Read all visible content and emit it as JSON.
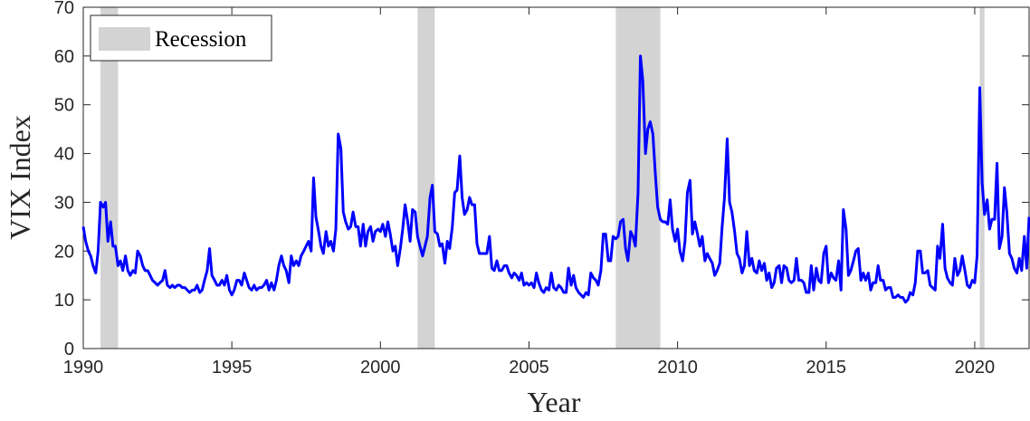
{
  "chart_data": {
    "type": "line",
    "x_label": "Year",
    "y_label": "VIX Index",
    "xlim": [
      1990,
      2021.83
    ],
    "ylim": [
      0,
      70
    ],
    "xticks": [
      1990,
      1995,
      2000,
      2005,
      2010,
      2015,
      2020
    ],
    "yticks": [
      0,
      10,
      20,
      30,
      40,
      50,
      60,
      70
    ],
    "legend": "upper left",
    "recession_name": "Recession",
    "recession_color": "#d3d3d3",
    "recessions": [
      [
        1990.58,
        1991.17
      ],
      [
        2001.25,
        2001.83
      ],
      [
        2007.92,
        2009.42
      ],
      [
        2020.17,
        2020.33
      ]
    ],
    "x": [
      1990.0,
      1990.08,
      1990.17,
      1990.25,
      1990.33,
      1990.42,
      1990.5,
      1990.58,
      1990.67,
      1990.75,
      1990.83,
      1990.92,
      1991.0,
      1991.08,
      1991.17,
      1991.25,
      1991.33,
      1991.42,
      1991.5,
      1991.58,
      1991.67,
      1991.75,
      1991.83,
      1991.92,
      1992.0,
      1992.08,
      1992.17,
      1992.25,
      1992.33,
      1992.42,
      1992.5,
      1992.58,
      1992.67,
      1992.75,
      1992.83,
      1992.92,
      1993.0,
      1993.08,
      1993.17,
      1993.25,
      1993.33,
      1993.42,
      1993.5,
      1993.58,
      1993.67,
      1993.75,
      1993.83,
      1993.92,
      1994.0,
      1994.08,
      1994.17,
      1994.25,
      1994.33,
      1994.42,
      1994.5,
      1994.58,
      1994.67,
      1994.75,
      1994.83,
      1994.92,
      1995.0,
      1995.08,
      1995.17,
      1995.25,
      1995.33,
      1995.42,
      1995.5,
      1995.58,
      1995.67,
      1995.75,
      1995.83,
      1995.92,
      1996.0,
      1996.08,
      1996.17,
      1996.25,
      1996.33,
      1996.42,
      1996.5,
      1996.58,
      1996.67,
      1996.75,
      1996.83,
      1996.92,
      1997.0,
      1997.08,
      1997.17,
      1997.25,
      1997.33,
      1997.42,
      1997.5,
      1997.58,
      1997.67,
      1997.75,
      1997.83,
      1997.92,
      1998.0,
      1998.08,
      1998.17,
      1998.25,
      1998.33,
      1998.42,
      1998.5,
      1998.58,
      1998.67,
      1998.75,
      1998.83,
      1998.92,
      1999.0,
      1999.08,
      1999.17,
      1999.25,
      1999.33,
      1999.42,
      1999.5,
      1999.58,
      1999.67,
      1999.75,
      1999.83,
      1999.92,
      2000.0,
      2000.08,
      2000.17,
      2000.25,
      2000.33,
      2000.42,
      2000.5,
      2000.58,
      2000.67,
      2000.75,
      2000.83,
      2000.92,
      2001.0,
      2001.08,
      2001.17,
      2001.25,
      2001.33,
      2001.42,
      2001.5,
      2001.58,
      2001.67,
      2001.75,
      2001.83,
      2001.92,
      2002.0,
      2002.08,
      2002.17,
      2002.25,
      2002.33,
      2002.42,
      2002.5,
      2002.58,
      2002.67,
      2002.75,
      2002.83,
      2002.92,
      2003.0,
      2003.08,
      2003.17,
      2003.25,
      2003.33,
      2003.42,
      2003.5,
      2003.58,
      2003.67,
      2003.75,
      2003.83,
      2003.92,
      2004.0,
      2004.08,
      2004.17,
      2004.25,
      2004.33,
      2004.42,
      2004.5,
      2004.58,
      2004.67,
      2004.75,
      2004.83,
      2004.92,
      2005.0,
      2005.08,
      2005.17,
      2005.25,
      2005.33,
      2005.42,
      2005.5,
      2005.58,
      2005.67,
      2005.75,
      2005.83,
      2005.92,
      2006.0,
      2006.08,
      2006.17,
      2006.25,
      2006.33,
      2006.42,
      2006.5,
      2006.58,
      2006.67,
      2006.75,
      2006.83,
      2006.92,
      2007.0,
      2007.08,
      2007.17,
      2007.25,
      2007.33,
      2007.42,
      2007.5,
      2007.58,
      2007.67,
      2007.75,
      2007.83,
      2007.92,
      2008.0,
      2008.08,
      2008.17,
      2008.25,
      2008.33,
      2008.42,
      2008.5,
      2008.58,
      2008.67,
      2008.75,
      2008.83,
      2008.92,
      2009.0,
      2009.08,
      2009.17,
      2009.25,
      2009.33,
      2009.42,
      2009.5,
      2009.58,
      2009.67,
      2009.75,
      2009.83,
      2009.92,
      2010.0,
      2010.08,
      2010.17,
      2010.25,
      2010.33,
      2010.42,
      2010.5,
      2010.58,
      2010.67,
      2010.75,
      2010.83,
      2010.92,
      2011.0,
      2011.08,
      2011.17,
      2011.25,
      2011.33,
      2011.42,
      2011.5,
      2011.58,
      2011.67,
      2011.75,
      2011.83,
      2011.92,
      2012.0,
      2012.08,
      2012.17,
      2012.25,
      2012.33,
      2012.42,
      2012.5,
      2012.58,
      2012.67,
      2012.75,
      2012.83,
      2012.92,
      2013.0,
      2013.08,
      2013.17,
      2013.25,
      2013.33,
      2013.42,
      2013.5,
      2013.58,
      2013.67,
      2013.75,
      2013.83,
      2013.92,
      2014.0,
      2014.08,
      2014.17,
      2014.25,
      2014.33,
      2014.42,
      2014.5,
      2014.58,
      2014.67,
      2014.75,
      2014.83,
      2014.92,
      2015.0,
      2015.08,
      2015.17,
      2015.25,
      2015.33,
      2015.42,
      2015.5,
      2015.58,
      2015.67,
      2015.75,
      2015.83,
      2015.92,
      2016.0,
      2016.08,
      2016.17,
      2016.25,
      2016.33,
      2016.42,
      2016.5,
      2016.58,
      2016.67,
      2016.75,
      2016.83,
      2016.92,
      2017.0,
      2017.08,
      2017.17,
      2017.25,
      2017.33,
      2017.42,
      2017.5,
      2017.58,
      2017.67,
      2017.75,
      2017.83,
      2017.92,
      2018.0,
      2018.08,
      2018.17,
      2018.25,
      2018.33,
      2018.42,
      2018.5,
      2018.58,
      2018.67,
      2018.75,
      2018.83,
      2018.92,
      2019.0,
      2019.08,
      2019.17,
      2019.25,
      2019.33,
      2019.42,
      2019.5,
      2019.58,
      2019.67,
      2019.75,
      2019.83,
      2019.92,
      2020.0,
      2020.08,
      2020.17,
      2020.25,
      2020.33,
      2020.42,
      2020.5,
      2020.58,
      2020.67,
      2020.75,
      2020.83,
      2020.92,
      2021.0,
      2021.08,
      2021.17,
      2021.25,
      2021.33,
      2021.42,
      2021.5,
      2021.58,
      2021.67,
      2021.75,
      2021.83
    ],
    "series": [
      {
        "name": "VIX",
        "color": "#0000ff",
        "values": [
          25,
          22,
          20,
          19,
          17,
          15.5,
          20,
          30,
          29,
          30,
          22,
          26,
          21,
          21,
          17,
          18,
          16,
          19,
          16,
          15,
          16,
          15.5,
          20,
          19,
          17,
          16,
          16,
          15,
          14,
          13.5,
          13,
          13.5,
          14,
          16,
          13,
          12.5,
          13,
          12.5,
          13,
          13,
          12.5,
          12.5,
          12,
          11.5,
          12,
          12,
          13,
          11.5,
          12,
          14,
          16,
          20.5,
          15,
          14,
          13,
          13,
          14,
          13,
          15,
          12,
          11,
          12,
          14,
          14,
          13,
          15.5,
          14,
          12.5,
          12,
          13,
          12,
          12.5,
          12.5,
          13,
          14,
          12,
          13.5,
          12,
          14,
          17,
          19,
          17,
          16,
          13.5,
          19,
          17,
          18,
          17,
          19,
          20,
          21,
          22,
          20,
          35,
          27,
          24,
          21,
          19.5,
          24,
          21,
          22,
          20,
          24.5,
          44,
          41,
          28,
          26,
          24.5,
          25,
          28,
          25,
          25,
          21,
          25.5,
          21,
          24,
          25,
          22,
          24,
          24.5,
          24,
          25.5,
          23,
          26,
          23.5,
          20,
          21,
          17,
          20.5,
          24.5,
          29.5,
          26,
          22,
          28.5,
          28,
          23,
          21,
          19,
          21,
          23,
          31,
          33.5,
          24,
          23.5,
          21,
          21.5,
          17.5,
          22,
          20.5,
          25,
          32,
          32.5,
          39.5,
          31,
          27.5,
          28.5,
          31,
          29.5,
          29.5,
          21.5,
          19.5,
          19.5,
          19.5,
          19.5,
          23,
          16.5,
          16,
          18,
          16,
          16,
          17,
          17,
          15.5,
          14.5,
          15.5,
          15,
          14,
          15.5,
          13,
          13.5,
          13,
          13.5,
          12.5,
          15.5,
          13.5,
          12,
          11.5,
          12.5,
          12,
          15.5,
          12.5,
          12,
          13,
          12.5,
          11.5,
          11.5,
          16.5,
          13,
          15,
          12.5,
          11.5,
          11,
          10.5,
          11.5,
          11,
          15.5,
          14.5,
          14,
          13,
          16,
          23.5,
          23.5,
          18,
          18,
          23,
          22.5,
          23,
          26,
          26.5,
          20.5,
          18,
          24,
          23,
          21,
          32,
          60,
          55,
          40,
          45,
          46.5,
          44,
          36,
          29,
          26.5,
          26,
          26,
          25.5,
          30.5,
          24.5,
          22,
          24.5,
          20,
          18,
          22,
          32,
          34.5,
          23.5,
          26,
          23.5,
          21,
          23,
          18,
          19.5,
          18.5,
          17.5,
          15,
          16,
          17.5,
          25,
          31,
          43,
          30,
          28,
          24,
          19.5,
          18.5,
          15.5,
          17,
          24,
          17,
          18.5,
          16,
          15.5,
          18,
          16,
          17.5,
          14,
          15.5,
          12.5,
          13.5,
          16.5,
          17,
          13.5,
          17,
          16.5,
          14,
          13.5,
          14,
          18.5,
          14,
          14,
          13.5,
          11.5,
          11.5,
          17,
          12,
          16.5,
          14,
          13.5,
          19.5,
          21,
          13.5,
          15.5,
          14.5,
          14,
          18,
          12,
          28.5,
          24.5,
          15,
          16,
          18,
          20,
          20.5,
          14,
          15.5,
          14,
          15.5,
          12,
          13.5,
          13.5,
          17,
          14,
          14,
          12,
          12.5,
          12.5,
          10.5,
          10.5,
          11,
          10.5,
          10.5,
          9.5,
          10,
          11.5,
          11,
          13.5,
          20,
          20,
          15.5,
          15.5,
          16,
          13,
          12.5,
          12,
          21,
          18.5,
          25.5,
          16.5,
          14.5,
          13.5,
          13,
          18.5,
          15,
          16,
          19,
          16,
          13,
          12.5,
          14,
          13.5,
          19,
          53.5,
          34,
          27.5,
          30.5,
          24.5,
          26.5,
          26.5,
          38,
          20.5,
          23,
          33,
          28,
          19.5,
          18.5,
          16.5,
          15.5,
          18.5,
          16,
          23,
          16.5,
          27
        ]
      }
    ]
  }
}
